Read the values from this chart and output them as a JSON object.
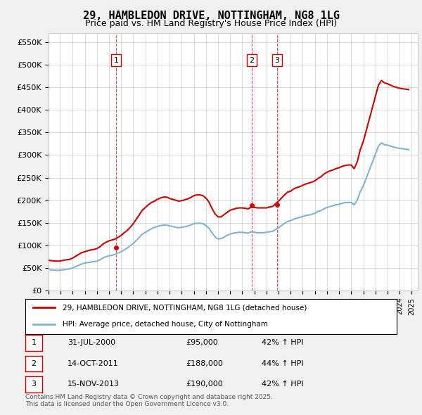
{
  "title": "29, HAMBLEDON DRIVE, NOTTINGHAM, NG8 1LG",
  "subtitle": "Price paid vs. HM Land Registry's House Price Index (HPI)",
  "background_color": "#f0f0f0",
  "plot_background": "#ffffff",
  "red_line_color": "#cc0000",
  "blue_line_color": "#7fb3d3",
  "ylim": [
    0,
    570000
  ],
  "yticks": [
    0,
    50000,
    100000,
    150000,
    200000,
    250000,
    300000,
    350000,
    400000,
    450000,
    500000,
    550000
  ],
  "ytick_labels": [
    "£0",
    "£50K",
    "£100K",
    "£150K",
    "£200K",
    "£250K",
    "£300K",
    "£350K",
    "£400K",
    "£450K",
    "£500K",
    "£550K"
  ],
  "purchase_dates": [
    "2000-07-31",
    "2011-10-14",
    "2013-11-15"
  ],
  "purchase_prices": [
    95000,
    188000,
    190000
  ],
  "purchase_labels": [
    "1",
    "2",
    "3"
  ],
  "legend_entries": [
    "29, HAMBLEDON DRIVE, NOTTINGHAM, NG8 1LG (detached house)",
    "HPI: Average price, detached house, City of Nottingham"
  ],
  "table_rows": [
    [
      "1",
      "31-JUL-2000",
      "£95,000",
      "42% ↑ HPI"
    ],
    [
      "2",
      "14-OCT-2011",
      "£188,000",
      "44% ↑ HPI"
    ],
    [
      "3",
      "15-NOV-2013",
      "£190,000",
      "42% ↑ HPI"
    ]
  ],
  "footnote": "Contains HM Land Registry data © Crown copyright and database right 2025.\nThis data is licensed under the Open Government Licence v3.0.",
  "red_hpi_data": {
    "years": [
      1995.0,
      1995.25,
      1995.5,
      1995.75,
      1996.0,
      1996.25,
      1996.5,
      1996.75,
      1997.0,
      1997.25,
      1997.5,
      1997.75,
      1998.0,
      1998.25,
      1998.5,
      1998.75,
      1999.0,
      1999.25,
      1999.5,
      1999.75,
      2000.0,
      2000.25,
      2000.5,
      2000.75,
      2001.0,
      2001.25,
      2001.5,
      2001.75,
      2002.0,
      2002.25,
      2002.5,
      2002.75,
      2003.0,
      2003.25,
      2003.5,
      2003.75,
      2004.0,
      2004.25,
      2004.5,
      2004.75,
      2005.0,
      2005.25,
      2005.5,
      2005.75,
      2006.0,
      2006.25,
      2006.5,
      2006.75,
      2007.0,
      2007.25,
      2007.5,
      2007.75,
      2008.0,
      2008.25,
      2008.5,
      2008.75,
      2009.0,
      2009.25,
      2009.5,
      2009.75,
      2010.0,
      2010.25,
      2010.5,
      2010.75,
      2011.0,
      2011.25,
      2011.5,
      2011.75,
      2012.0,
      2012.25,
      2012.5,
      2012.75,
      2013.0,
      2013.25,
      2013.5,
      2013.75,
      2014.0,
      2014.25,
      2014.5,
      2014.75,
      2015.0,
      2015.25,
      2015.5,
      2015.75,
      2016.0,
      2016.25,
      2016.5,
      2016.75,
      2017.0,
      2017.25,
      2017.5,
      2017.75,
      2018.0,
      2018.25,
      2018.5,
      2018.75,
      2019.0,
      2019.25,
      2019.5,
      2019.75,
      2020.0,
      2020.25,
      2020.5,
      2020.75,
      2021.0,
      2021.25,
      2021.5,
      2021.75,
      2022.0,
      2022.25,
      2022.5,
      2022.75,
      2023.0,
      2023.25,
      2023.5,
      2023.75,
      2024.0,
      2024.25,
      2024.5,
      2024.75
    ],
    "values": [
      67000,
      66000,
      65500,
      65000,
      65500,
      67000,
      68000,
      69000,
      72000,
      76000,
      80000,
      84000,
      86000,
      88000,
      90000,
      91000,
      93000,
      97000,
      103000,
      107000,
      110000,
      112000,
      114000,
      118000,
      122000,
      128000,
      133000,
      140000,
      148000,
      158000,
      168000,
      178000,
      184000,
      190000,
      195000,
      198000,
      202000,
      205000,
      207000,
      207000,
      204000,
      202000,
      200000,
      198000,
      199000,
      201000,
      203000,
      206000,
      210000,
      212000,
      212000,
      210000,
      205000,
      196000,
      182000,
      170000,
      163000,
      163000,
      168000,
      173000,
      178000,
      180000,
      182000,
      183000,
      183000,
      182000,
      181000,
      185000,
      184000,
      183000,
      183000,
      183000,
      183000,
      185000,
      186000,
      192000,
      198000,
      205000,
      212000,
      218000,
      220000,
      225000,
      228000,
      230000,
      233000,
      236000,
      238000,
      240000,
      243000,
      248000,
      252000,
      258000,
      262000,
      265000,
      267000,
      270000,
      272000,
      275000,
      277000,
      278000,
      278000,
      270000,
      285000,
      312000,
      330000,
      355000,
      380000,
      405000,
      430000,
      455000,
      465000,
      460000,
      458000,
      455000,
      452000,
      450000,
      448000,
      447000,
      446000,
      445000
    ]
  },
  "blue_hpi_data": {
    "years": [
      1995.0,
      1995.25,
      1995.5,
      1995.75,
      1996.0,
      1996.25,
      1996.5,
      1996.75,
      1997.0,
      1997.25,
      1997.5,
      1997.75,
      1998.0,
      1998.25,
      1998.5,
      1998.75,
      1999.0,
      1999.25,
      1999.5,
      1999.75,
      2000.0,
      2000.25,
      2000.5,
      2000.75,
      2001.0,
      2001.25,
      2001.5,
      2001.75,
      2002.0,
      2002.25,
      2002.5,
      2002.75,
      2003.0,
      2003.25,
      2003.5,
      2003.75,
      2004.0,
      2004.25,
      2004.5,
      2004.75,
      2005.0,
      2005.25,
      2005.5,
      2005.75,
      2006.0,
      2006.25,
      2006.5,
      2006.75,
      2007.0,
      2007.25,
      2007.5,
      2007.75,
      2008.0,
      2008.25,
      2008.5,
      2008.75,
      2009.0,
      2009.25,
      2009.5,
      2009.75,
      2010.0,
      2010.25,
      2010.5,
      2010.75,
      2011.0,
      2011.25,
      2011.5,
      2011.75,
      2012.0,
      2012.25,
      2012.5,
      2012.75,
      2013.0,
      2013.25,
      2013.5,
      2013.75,
      2014.0,
      2014.25,
      2014.5,
      2014.75,
      2015.0,
      2015.25,
      2015.5,
      2015.75,
      2016.0,
      2016.25,
      2016.5,
      2016.75,
      2017.0,
      2017.25,
      2017.5,
      2017.75,
      2018.0,
      2018.25,
      2018.5,
      2018.75,
      2019.0,
      2019.25,
      2019.5,
      2019.75,
      2020.0,
      2020.25,
      2020.5,
      2020.75,
      2021.0,
      2021.25,
      2021.5,
      2021.75,
      2022.0,
      2022.25,
      2022.5,
      2022.75,
      2023.0,
      2023.25,
      2023.5,
      2023.75,
      2024.0,
      2024.25,
      2024.5,
      2024.75
    ],
    "values": [
      46000,
      45500,
      45000,
      44500,
      45000,
      46000,
      47000,
      48000,
      50000,
      53000,
      56000,
      59000,
      61000,
      62000,
      63000,
      64000,
      65000,
      68000,
      72000,
      75000,
      77000,
      78000,
      80000,
      83000,
      86000,
      90000,
      94000,
      99000,
      104000,
      111000,
      118000,
      125000,
      129000,
      133000,
      137000,
      140000,
      142000,
      144000,
      145000,
      145000,
      143000,
      142000,
      140000,
      139000,
      140000,
      141000,
      143000,
      145000,
      148000,
      149000,
      149000,
      148000,
      144000,
      138000,
      128000,
      119000,
      114000,
      115000,
      118000,
      122000,
      125000,
      127000,
      128000,
      129000,
      129000,
      128000,
      127000,
      130000,
      129000,
      128000,
      128000,
      128000,
      129000,
      130000,
      131000,
      135000,
      139000,
      144000,
      149000,
      153000,
      155000,
      158000,
      160000,
      162000,
      164000,
      166000,
      167000,
      169000,
      171000,
      175000,
      177000,
      181000,
      184000,
      186000,
      188000,
      190000,
      191000,
      193000,
      195000,
      195000,
      195000,
      190000,
      200000,
      219000,
      232000,
      249000,
      267000,
      284000,
      302000,
      320000,
      327000,
      323000,
      322000,
      320000,
      318000,
      316000,
      315000,
      314000,
      313000,
      312000
    ]
  }
}
